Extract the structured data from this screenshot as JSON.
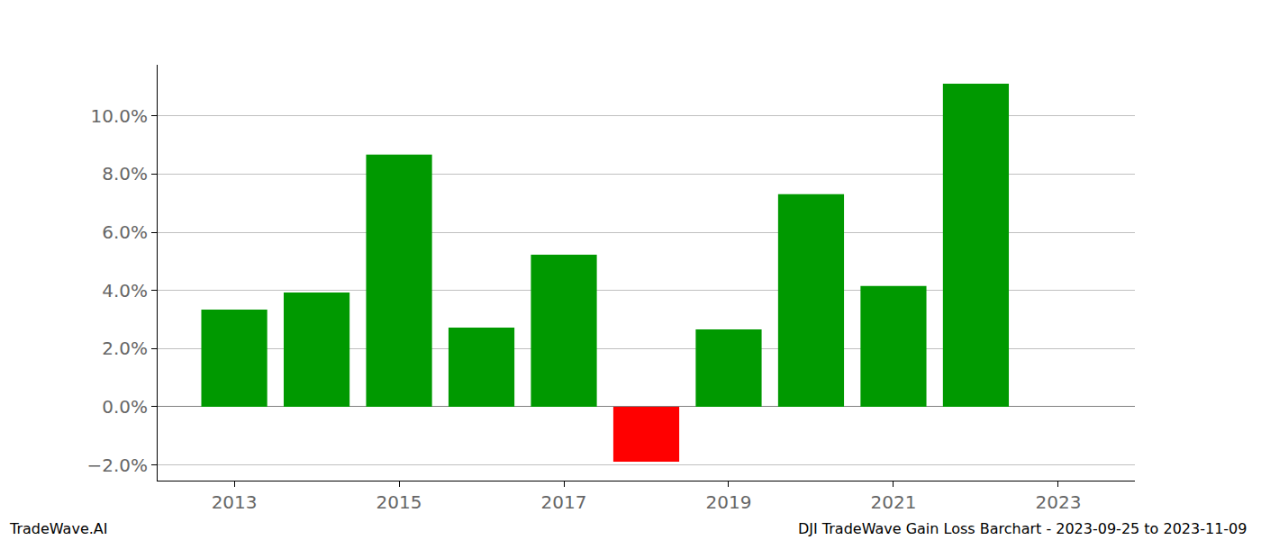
{
  "chart_data": {
    "type": "bar",
    "x": [
      2013,
      2014,
      2015,
      2016,
      2017,
      2018,
      2019,
      2020,
      2021,
      2022
    ],
    "values": [
      3.34,
      3.93,
      8.67,
      2.72,
      5.23,
      -1.89,
      2.66,
      7.31,
      4.15,
      11.11
    ],
    "colors": [
      "#009900",
      "#009900",
      "#009900",
      "#009900",
      "#009900",
      "#ff0000",
      "#009900",
      "#009900",
      "#009900",
      "#009900"
    ],
    "xlim": [
      2012.07,
      2023.93
    ],
    "xticks": [
      2013,
      2015,
      2017,
      2019,
      2021,
      2023
    ],
    "ylim": [
      -2.54,
      11.76
    ],
    "yticks": [
      {
        "value": -2,
        "label": "−2.0%"
      },
      {
        "value": 0,
        "label": "0.0%"
      },
      {
        "value": 2,
        "label": "2.0%"
      },
      {
        "value": 4,
        "label": "4.0%"
      },
      {
        "value": 6,
        "label": "6.0%"
      },
      {
        "value": 8,
        "label": "8.0%"
      },
      {
        "value": 10,
        "label": "10.0%"
      }
    ],
    "grid": true,
    "annotations": [
      "TradeWave.AI",
      "DJI TradeWave Gain Loss Barchart - 2023-09-25 to 2023-11-09"
    ]
  }
}
